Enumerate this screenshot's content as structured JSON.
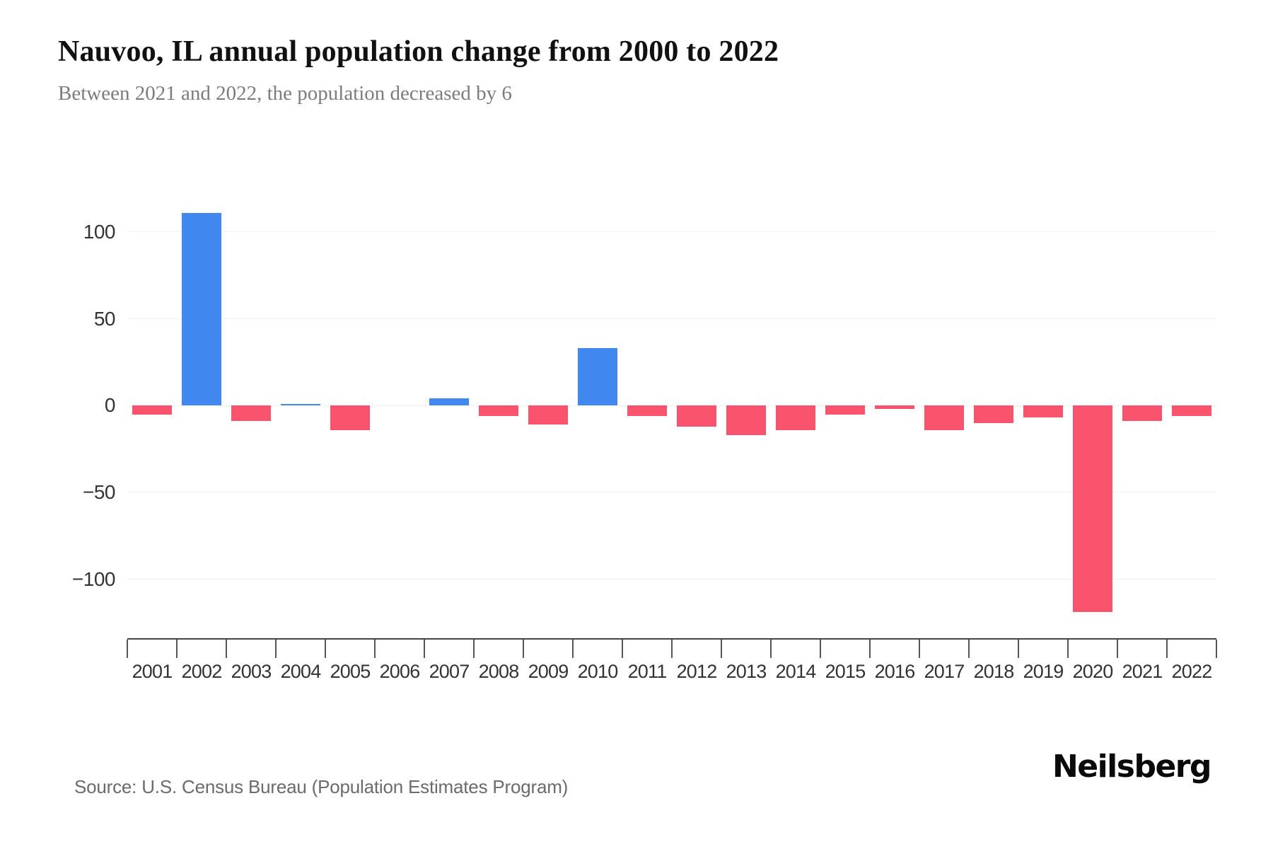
{
  "header": {
    "title": "Nauvoo, IL annual population change from 2000 to 2022",
    "subtitle": "Between 2021 and 2022, the population decreased by 6"
  },
  "footer": {
    "source": "Source: U.S. Census Bureau (Population Estimates Program)",
    "brand": "Neilsberg"
  },
  "chart_data": {
    "type": "bar",
    "title": "Nauvoo, IL annual population change from 2000 to 2022",
    "xlabel": "",
    "ylabel": "",
    "categories": [
      "2001",
      "2002",
      "2003",
      "2004",
      "2005",
      "2006",
      "2007",
      "2008",
      "2009",
      "2010",
      "2011",
      "2012",
      "2013",
      "2014",
      "2015",
      "2016",
      "2017",
      "2018",
      "2019",
      "2020",
      "2021",
      "2022"
    ],
    "values": [
      -5,
      111,
      -9,
      1,
      -14,
      0,
      4,
      -6,
      -11,
      33,
      -6,
      -12,
      -17,
      -14,
      -5,
      -2,
      -14,
      -10,
      -7,
      -119,
      -9,
      -6
    ],
    "y_ticks": [
      100,
      50,
      0,
      -50,
      -100
    ],
    "ylim": [
      -134,
      130
    ],
    "grid": true,
    "legend": "none",
    "positive_color": "#4187f0",
    "negative_color": "#fa536e",
    "grid_color": "#f0f0f0",
    "axis_color": "#444444"
  }
}
